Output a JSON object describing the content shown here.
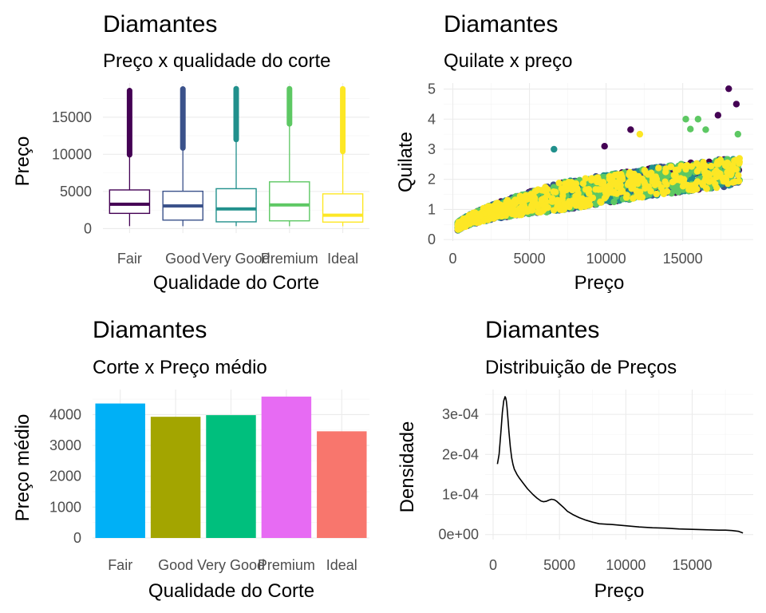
{
  "chart_data": [
    {
      "id": "boxplot",
      "type": "boxplot",
      "title": "Diamantes",
      "subtitle": "Preço x qualidade do corte",
      "xlabel": "Qualidade do Corte",
      "ylabel": "Preço",
      "categories": [
        "Fair",
        "Good",
        "Very Good",
        "Premium",
        "Ideal"
      ],
      "colors": [
        "#440154",
        "#3B528B",
        "#21908C",
        "#5DC863",
        "#FDE725"
      ],
      "boxes": [
        {
          "category": "Fair",
          "whisker_low": 337,
          "q1": 2050,
          "median": 3282,
          "q3": 5206,
          "whisker_high": 9939,
          "outlier_max": 18574
        },
        {
          "category": "Good",
          "whisker_low": 327,
          "q1": 1145,
          "median": 3050,
          "q3": 5028,
          "whisker_high": 10850,
          "outlier_max": 18788
        },
        {
          "category": "Very Good",
          "whisker_low": 336,
          "q1": 912,
          "median": 2648,
          "q3": 5373,
          "whisker_high": 12000,
          "outlier_max": 18818
        },
        {
          "category": "Premium",
          "whisker_low": 326,
          "q1": 1046,
          "median": 3185,
          "q3": 6296,
          "whisker_high": 14100,
          "outlier_max": 18823
        },
        {
          "category": "Ideal",
          "whisker_low": 326,
          "q1": 878,
          "median": 1810,
          "q3": 4678,
          "whisker_high": 10380,
          "outlier_max": 18806
        }
      ],
      "y_ticks": [
        0,
        5000,
        10000,
        15000
      ],
      "y_tick_labels": [
        "0",
        "5000",
        "10000",
        "15000"
      ],
      "ylim": [
        -600,
        19600
      ]
    },
    {
      "id": "scatter",
      "type": "scatter",
      "title": "Diamantes",
      "subtitle": "Quilate x preço",
      "xlabel": "Preço",
      "ylabel": "Quilate",
      "x_ticks": [
        0,
        5000,
        10000,
        15000
      ],
      "x_tick_labels": [
        "0",
        "5000",
        "10000",
        "15000"
      ],
      "y_ticks": [
        0,
        1,
        2,
        3,
        4,
        5
      ],
      "y_tick_labels": [
        "0",
        "1",
        "2",
        "3",
        "4",
        "5"
      ],
      "xlim": [
        -600,
        19600
      ],
      "ylim": [
        -0.05,
        5.2
      ],
      "colors": [
        "#440154",
        "#3B528B",
        "#21908C",
        "#5DC863",
        "#FDE725"
      ],
      "notable_points": [
        {
          "x": 18000,
          "y": 5.01,
          "group": 0
        },
        {
          "x": 18500,
          "y": 4.5,
          "group": 0
        },
        {
          "x": 17300,
          "y": 4.13,
          "group": 0
        },
        {
          "x": 15200,
          "y": 4.0,
          "group": 3
        },
        {
          "x": 16000,
          "y": 4.0,
          "group": 3
        },
        {
          "x": 11600,
          "y": 3.65,
          "group": 0
        },
        {
          "x": 16500,
          "y": 3.65,
          "group": 3
        },
        {
          "x": 12200,
          "y": 3.5,
          "group": 4
        },
        {
          "x": 18600,
          "y": 3.5,
          "group": 3
        },
        {
          "x": 15500,
          "y": 3.67,
          "group": 3
        },
        {
          "x": 6600,
          "y": 3.0,
          "group": 2
        },
        {
          "x": 9900,
          "y": 3.1,
          "group": 0
        }
      ]
    },
    {
      "id": "bar",
      "type": "bar",
      "title": "Diamantes",
      "subtitle": "Corte x Preço médio",
      "xlabel": "Qualidade do Corte",
      "ylabel": "Preço médio",
      "categories": [
        "Fair",
        "Good",
        "Very Good",
        "Premium",
        "Ideal"
      ],
      "values": [
        4359,
        3929,
        3982,
        4584,
        3458
      ],
      "colors": [
        "#00B0F6",
        "#A3A500",
        "#00BF7D",
        "#E76BF3",
        "#F8766D"
      ],
      "y_ticks": [
        0,
        1000,
        2000,
        3000,
        4000
      ],
      "y_tick_labels": [
        "0",
        "1000",
        "2000",
        "3000",
        "4000"
      ],
      "ylim": [
        0,
        4813
      ]
    },
    {
      "id": "density",
      "type": "line",
      "title": "Diamantes",
      "subtitle": "Distribuição de Preços",
      "xlabel": "Preço",
      "ylabel": "Densidade",
      "x_ticks": [
        0,
        5000,
        10000,
        15000
      ],
      "x_tick_labels": [
        "0",
        "5000",
        "10000",
        "15000"
      ],
      "y_ticks": [
        0,
        0.0001,
        0.0002,
        0.0003
      ],
      "y_tick_labels": [
        "0e+00",
        "1e-04",
        "2e-04",
        "3e-04"
      ],
      "xlim": [
        -600,
        19600
      ],
      "ylim": [
        -1.25e-05,
        0.000362
      ],
      "x": [
        326,
        450,
        600,
        700,
        800,
        900,
        950,
        1000,
        1050,
        1100,
        1200,
        1300,
        1400,
        1500,
        1600,
        1800,
        2000,
        2300,
        2600,
        3000,
        3300,
        3600,
        3800,
        4000,
        4200,
        4400,
        4600,
        4800,
        5000,
        5300,
        5600,
        6000,
        6500,
        7000,
        7500,
        8000,
        9000,
        10000,
        11000,
        12000,
        13000,
        14000,
        15000,
        16000,
        17000,
        17500,
        18000,
        18500,
        18823
      ],
      "y": [
        0.000176,
        0.0002,
        0.000262,
        0.000305,
        0.000334,
        0.000344,
        0.000341,
        0.000333,
        0.000318,
        0.000296,
        0.000255,
        0.000218,
        0.000191,
        0.000175,
        0.000163,
        0.00015,
        0.00014,
        0.000127,
        0.000114,
        0.0001,
        9.1e-05,
        8.4e-05,
        8.2e-05,
        8.3e-05,
        8.6e-05,
        8.8e-05,
        8.7e-05,
        8.3e-05,
        7.7e-05,
        6.8e-05,
        5.8e-05,
        5e-05,
        4.2e-05,
        3.6e-05,
        3.1e-05,
        2.7e-05,
        2.5e-05,
        2.2e-05,
        1.9e-05,
        1.7e-05,
        1.6e-05,
        1.4e-05,
        1.3e-05,
        1.2e-05,
        1.1e-05,
        1.1e-05,
        1e-05,
        8e-06,
        4e-06
      ]
    }
  ]
}
